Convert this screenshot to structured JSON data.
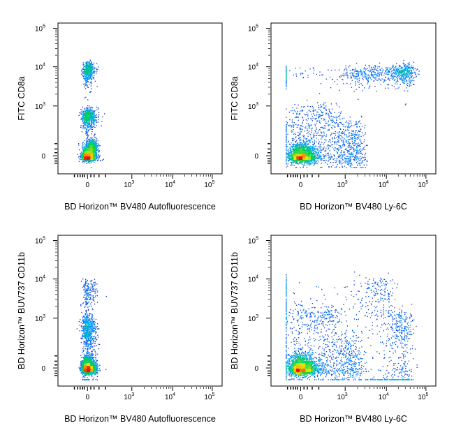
{
  "chart_data": [
    {
      "type": "scatter",
      "xlabel": "BD Horizon™ BV480 Autofluorescence",
      "ylabel": "FITC CD8a",
      "x_ticks": [
        {
          "base": "0",
          "exp": ""
        },
        {
          "base": "10",
          "exp": "3"
        },
        {
          "base": "10",
          "exp": "4"
        },
        {
          "base": "10",
          "exp": "5"
        }
      ],
      "y_ticks": [
        {
          "base": "0",
          "exp": ""
        },
        {
          "base": "10",
          "exp": "3"
        },
        {
          "base": "10",
          "exp": "4"
        },
        {
          "base": "10",
          "exp": "5"
        }
      ],
      "scale": "biexponential",
      "populations": [
        {
          "x": 0,
          "y": 0,
          "sx": 60,
          "sy": 60,
          "n": 1600
        },
        {
          "x": 0,
          "y": 600,
          "sx": 60,
          "sy": 150,
          "n": 700
        },
        {
          "x": 0,
          "y": 8000,
          "sx": 50,
          "sy": 2500,
          "n": 500
        },
        {
          "x": 60,
          "y": 120,
          "sx": 40,
          "sy": 50,
          "n": 500
        }
      ]
    },
    {
      "type": "scatter",
      "xlabel": "BD Horizon™ BV480 Ly-6C",
      "ylabel": "FITC CD8a",
      "x_ticks": [
        {
          "base": "0",
          "exp": ""
        },
        {
          "base": "10",
          "exp": "3"
        },
        {
          "base": "10",
          "exp": "4"
        },
        {
          "base": "10",
          "exp": "5"
        }
      ],
      "y_ticks": [
        {
          "base": "0",
          "exp": ""
        },
        {
          "base": "10",
          "exp": "3"
        },
        {
          "base": "10",
          "exp": "4"
        },
        {
          "base": "10",
          "exp": "5"
        }
      ],
      "scale": "biexponential",
      "populations": [
        {
          "x": 0,
          "y": 0,
          "sx": 120,
          "sy": 80,
          "n": 2000
        },
        {
          "x": 1000,
          "y": 100,
          "sx": 900,
          "sy": 200,
          "n": 700
        },
        {
          "x": 25000,
          "y": 7000,
          "sx": 12000,
          "sy": 2000,
          "n": 500
        },
        {
          "x": 1500,
          "y": 6500,
          "sx": 2500,
          "sy": 1800,
          "n": 350
        },
        {
          "x": 200,
          "y": 400,
          "sx": 250,
          "sy": 350,
          "n": 400
        }
      ]
    },
    {
      "type": "scatter",
      "xlabel": "BD Horizon™ BV480 Autofluorescence",
      "ylabel": "BD Horizon™ BUV737 CD11b",
      "x_ticks": [
        {
          "base": "0",
          "exp": ""
        },
        {
          "base": "10",
          "exp": "3"
        },
        {
          "base": "10",
          "exp": "4"
        },
        {
          "base": "10",
          "exp": "5"
        }
      ],
      "y_ticks": [
        {
          "base": "0",
          "exp": ""
        },
        {
          "base": "10",
          "exp": "3"
        },
        {
          "base": "10",
          "exp": "4"
        },
        {
          "base": "10",
          "exp": "5"
        }
      ],
      "scale": "biexponential",
      "populations": [
        {
          "x": 0,
          "y": 0,
          "sx": 60,
          "sy": 70,
          "n": 2000
        },
        {
          "x": 0,
          "y": 500,
          "sx": 60,
          "sy": 300,
          "n": 700
        },
        {
          "x": 0,
          "y": 4000,
          "sx": 60,
          "sy": 3000,
          "n": 250
        }
      ]
    },
    {
      "type": "scatter",
      "xlabel": "BD Horizon™ BV480 Ly-6C",
      "ylabel": "BD Horizon™ BUV737 CD11b",
      "x_ticks": [
        {
          "base": "0",
          "exp": ""
        },
        {
          "base": "10",
          "exp": "3"
        },
        {
          "base": "10",
          "exp": "4"
        },
        {
          "base": "10",
          "exp": "5"
        }
      ],
      "y_ticks": [
        {
          "base": "0",
          "exp": ""
        },
        {
          "base": "10",
          "exp": "3"
        },
        {
          "base": "10",
          "exp": "4"
        },
        {
          "base": "10",
          "exp": "5"
        }
      ],
      "scale": "biexponential",
      "populations": [
        {
          "x": 0,
          "y": 0,
          "sx": 120,
          "sy": 90,
          "n": 2000
        },
        {
          "x": 800,
          "y": 100,
          "sx": 800,
          "sy": 200,
          "n": 600
        },
        {
          "x": 20000,
          "y": 300,
          "sx": 12000,
          "sy": 600,
          "n": 500
        },
        {
          "x": 3000,
          "y": 3000,
          "sx": 6000,
          "sy": 4000,
          "n": 400
        },
        {
          "x": 200,
          "y": 800,
          "sx": 300,
          "sy": 700,
          "n": 400
        }
      ]
    }
  ]
}
